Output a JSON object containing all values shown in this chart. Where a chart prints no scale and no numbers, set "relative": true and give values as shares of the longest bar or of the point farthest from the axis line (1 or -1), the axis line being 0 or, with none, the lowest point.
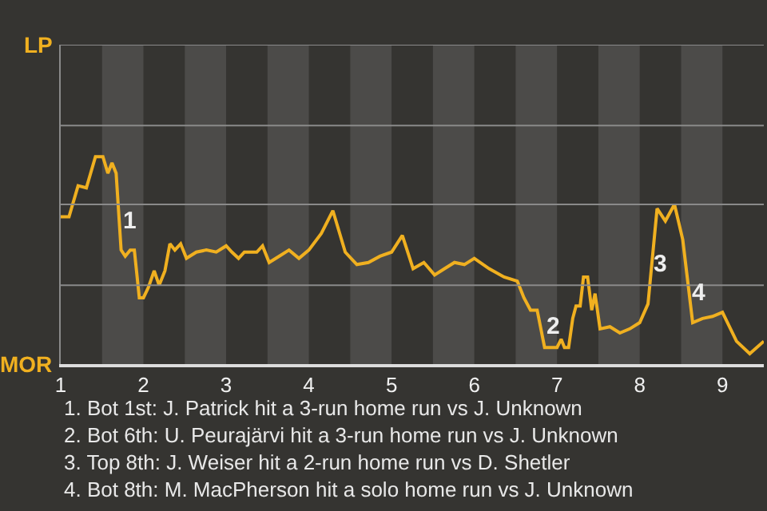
{
  "chart_data": {
    "type": "line",
    "x": [
      1.0,
      1.1,
      1.21,
      1.31,
      1.42,
      1.51,
      1.57,
      1.62,
      1.67,
      1.73,
      1.78,
      1.84,
      1.89,
      1.95,
      2.0,
      2.06,
      2.13,
      2.19,
      2.26,
      2.32,
      2.38,
      2.45,
      2.52,
      2.64,
      2.76,
      2.88,
      3.0,
      3.07,
      3.15,
      3.22,
      3.29,
      3.37,
      3.44,
      3.52,
      3.64,
      3.76,
      3.88,
      4.0,
      4.15,
      4.29,
      4.44,
      4.58,
      4.72,
      4.86,
      5.0,
      5.13,
      5.26,
      5.39,
      5.52,
      5.64,
      5.76,
      5.88,
      6.0,
      6.18,
      6.36,
      6.52,
      6.6,
      6.68,
      6.76,
      6.85,
      6.92,
      7.0,
      7.05,
      7.09,
      7.14,
      7.19,
      7.23,
      7.28,
      7.32,
      7.37,
      7.42,
      7.46,
      7.52,
      7.64,
      7.76,
      7.88,
      8.0,
      8.1,
      8.21,
      8.31,
      8.42,
      8.52,
      8.64,
      8.76,
      8.88,
      9.0,
      9.17,
      9.33,
      9.5
    ],
    "series": [
      {
        "color": "#f0b020",
        "values": [
          0.71,
          0.71,
          0.86,
          0.85,
          1,
          1,
          0.92,
          0.97,
          0.92,
          0.55,
          0.52,
          0.55,
          0.55,
          0.32,
          0.32,
          0.37,
          0.45,
          0.38,
          0.45,
          0.58,
          0.55,
          0.58,
          0.51,
          0.54,
          0.55,
          0.54,
          0.57,
          0.54,
          0.51,
          0.54,
          0.54,
          0.54,
          0.57,
          0.49,
          0.52,
          0.55,
          0.51,
          0.55,
          0.63,
          0.74,
          0.54,
          0.48,
          0.49,
          0.52,
          0.54,
          0.62,
          0.46,
          0.49,
          0.43,
          0.46,
          0.49,
          0.48,
          0.51,
          0.46,
          0.42,
          0.4,
          0.32,
          0.26,
          0.26,
          0.08,
          0.08,
          0.08,
          0.12,
          0.08,
          0.08,
          0.22,
          0.28,
          0.28,
          0.42,
          0.42,
          0.26,
          0.34,
          0.17,
          0.18,
          0.15,
          0.17,
          0.2,
          0.29,
          0.75,
          0.69,
          0.77,
          0.6,
          0.2,
          0.22,
          0.23,
          0.25,
          0.11,
          0.05,
          0.11
        ]
      }
    ],
    "relative": true,
    "xlim": [
      1,
      9.5
    ],
    "xticks": [
      1,
      2,
      3,
      4,
      5,
      6,
      7,
      8,
      9
    ],
    "ref_lines": [
      {
        "axis": "y",
        "value": 0.38,
        "color": "#8a8a8a"
      },
      {
        "axis": "y",
        "value": 0.77,
        "color": "#8a8a8a"
      },
      {
        "axis": "y",
        "value": 1.15,
        "color": "#8a8a8a"
      },
      {
        "axis": "y",
        "value": 1.54,
        "color": "#8a8a8a"
      }
    ],
    "marker": "none",
    "line_style": "solid",
    "bands": [
      {
        "axis": "x",
        "from": 1.5,
        "to": 2,
        "color": "#4c4b49"
      },
      {
        "axis": "x",
        "from": 2.5,
        "to": 3,
        "color": "#4c4b49"
      },
      {
        "axis": "x",
        "from": 3.5,
        "to": 4,
        "color": "#4c4b49"
      },
      {
        "axis": "x",
        "from": 4.5,
        "to": 5,
        "color": "#4c4b49"
      },
      {
        "axis": "x",
        "from": 5.5,
        "to": 6,
        "color": "#4c4b49"
      },
      {
        "axis": "x",
        "from": 6.5,
        "to": 7,
        "color": "#4c4b49"
      },
      {
        "axis": "x",
        "from": 7.5,
        "to": 8,
        "color": "#4c4b49"
      },
      {
        "axis": "x",
        "from": 8.5,
        "to": 9,
        "color": "#4c4b49"
      }
    ],
    "annotations": [
      {
        "text": "1",
        "x": 1.84,
        "y": 0.69
      },
      {
        "text": "2",
        "x": 6.95,
        "y": 0.18
      },
      {
        "text": "3",
        "x": 8.25,
        "y": 0.48
      },
      {
        "text": "4",
        "x": 8.71,
        "y": 0.34
      },
      "LP",
      "MOR",
      "1. Bot 1st: J. Patrick hit a 3-run home run vs J. Unknown",
      "2. Bot 6th: U. Peurajärvi hit a 3-run home run vs J. Unknown",
      "3. Top 8th: J. Weiser hit a 2-run home run vs D. Shetler",
      "4. Bot 8th: M. MacPherson hit a solo home run vs J. Unknown"
    ]
  }
}
